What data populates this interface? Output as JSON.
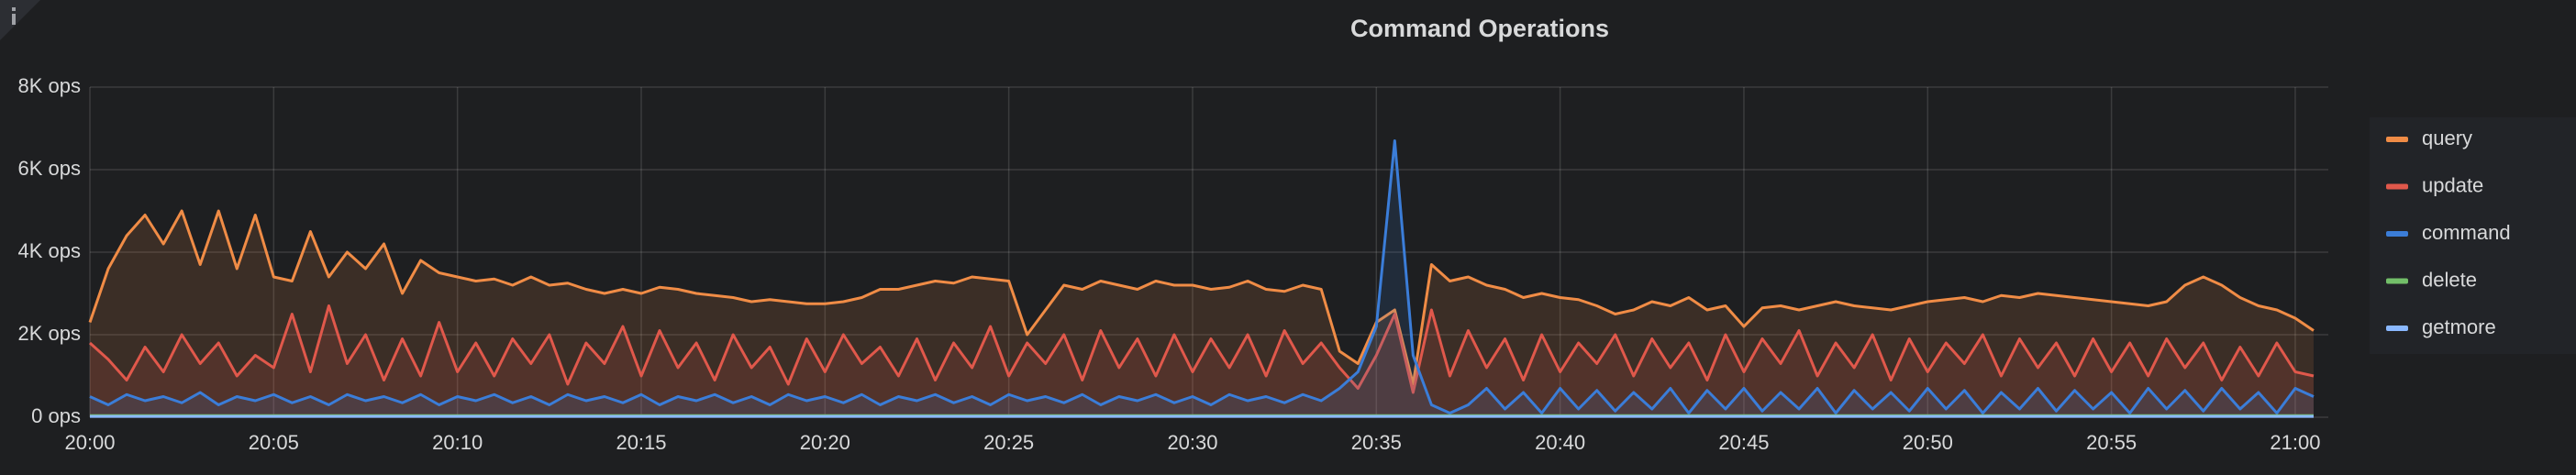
{
  "chart_data": {
    "type": "line",
    "title": "Command Operations",
    "xlim": [
      0,
      60.9
    ],
    "ylim": [
      0,
      8000
    ],
    "xticks": [
      {
        "value": 0,
        "label": "20:00"
      },
      {
        "value": 5,
        "label": "20:05"
      },
      {
        "value": 10,
        "label": "20:10"
      },
      {
        "value": 15,
        "label": "20:15"
      },
      {
        "value": 20,
        "label": "20:20"
      },
      {
        "value": 25,
        "label": "20:25"
      },
      {
        "value": 30,
        "label": "20:30"
      },
      {
        "value": 35,
        "label": "20:35"
      },
      {
        "value": 40,
        "label": "20:40"
      },
      {
        "value": 45,
        "label": "20:45"
      },
      {
        "value": 50,
        "label": "20:50"
      },
      {
        "value": 55,
        "label": "20:55"
      },
      {
        "value": 60,
        "label": "21:00"
      }
    ],
    "yticks": [
      {
        "value": 0,
        "label": "0 ops"
      },
      {
        "value": 2000,
        "label": "2K ops"
      },
      {
        "value": 4000,
        "label": "4K ops"
      },
      {
        "value": 6000,
        "label": "6K ops"
      },
      {
        "value": 8000,
        "label": "8K ops"
      }
    ],
    "grid": true,
    "fill": true,
    "legend": "right",
    "x": [
      0,
      0.5,
      1,
      1.5,
      2,
      2.5,
      3,
      3.5,
      4,
      4.5,
      5,
      5.5,
      6,
      6.5,
      7,
      7.5,
      8,
      8.5,
      9,
      9.5,
      10,
      10.5,
      11,
      11.5,
      12,
      12.5,
      13,
      13.5,
      14,
      14.5,
      15,
      15.5,
      16,
      16.5,
      17,
      17.5,
      18,
      18.5,
      19,
      19.5,
      20,
      20.5,
      21,
      21.5,
      22,
      22.5,
      23,
      23.5,
      24,
      24.5,
      25,
      25.5,
      26,
      26.5,
      27,
      27.5,
      28,
      28.5,
      29,
      29.5,
      30,
      30.5,
      31,
      31.5,
      32,
      32.5,
      33,
      33.5,
      34,
      34.5,
      35,
      35.5,
      36,
      36.5,
      37,
      37.5,
      38,
      38.5,
      39,
      39.5,
      40,
      40.5,
      41,
      41.5,
      42,
      42.5,
      43,
      43.5,
      44,
      44.5,
      45,
      45.5,
      46,
      46.5,
      47,
      47.5,
      48,
      48.5,
      49,
      49.5,
      50,
      50.5,
      51,
      51.5,
      52,
      52.5,
      53,
      53.5,
      54,
      54.5,
      55,
      55.5,
      56,
      56.5,
      57,
      57.5,
      58,
      58.5,
      59,
      59.5,
      60,
      60.5
    ],
    "series": [
      {
        "name": "query",
        "color": "#f08c46",
        "values": [
          2300,
          3600,
          4400,
          4900,
          4200,
          5000,
          3700,
          5000,
          3600,
          4900,
          3400,
          3300,
          4500,
          3400,
          4000,
          3600,
          4200,
          3000,
          3800,
          3500,
          3400,
          3300,
          3350,
          3200,
          3400,
          3200,
          3250,
          3100,
          3000,
          3100,
          3000,
          3150,
          3100,
          3000,
          2950,
          2900,
          2800,
          2850,
          2800,
          2750,
          2750,
          2800,
          2900,
          3100,
          3100,
          3200,
          3300,
          3250,
          3400,
          3350,
          3300,
          2000,
          2600,
          3200,
          3100,
          3300,
          3200,
          3100,
          3300,
          3200,
          3200,
          3100,
          3150,
          3300,
          3100,
          3050,
          3200,
          3100,
          1600,
          1300,
          2300,
          2600,
          800,
          3700,
          3300,
          3400,
          3200,
          3100,
          2900,
          3000,
          2900,
          2850,
          2700,
          2500,
          2600,
          2800,
          2700,
          2900,
          2600,
          2700,
          2200,
          2650,
          2700,
          2600,
          2700,
          2800,
          2700,
          2650,
          2600,
          2700,
          2800,
          2850,
          2900,
          2800,
          2950,
          2900,
          3000,
          2950,
          2900,
          2850,
          2800,
          2750,
          2700,
          2800,
          3200,
          3400,
          3200,
          2900,
          2700,
          2600,
          2400,
          2100
        ]
      },
      {
        "name": "update",
        "color": "#e0584b",
        "values": [
          1800,
          1400,
          900,
          1700,
          1100,
          2000,
          1300,
          1800,
          1000,
          1500,
          1200,
          2500,
          1100,
          2700,
          1300,
          2000,
          900,
          1900,
          1000,
          2300,
          1100,
          1800,
          1000,
          1900,
          1300,
          2000,
          800,
          1800,
          1300,
          2200,
          1000,
          2100,
          1200,
          1800,
          900,
          2000,
          1200,
          1700,
          800,
          1900,
          1100,
          2000,
          1300,
          1700,
          1000,
          1900,
          900,
          1800,
          1200,
          2200,
          1000,
          1800,
          1300,
          2000,
          900,
          2100,
          1200,
          1900,
          1000,
          2000,
          1100,
          1900,
          1200,
          2000,
          1000,
          2100,
          1300,
          1800,
          1200,
          700,
          1500,
          2500,
          600,
          2600,
          1000,
          2100,
          1200,
          1900,
          900,
          2000,
          1100,
          1800,
          1300,
          2000,
          1000,
          1900,
          1200,
          1800,
          900,
          2000,
          1100,
          1900,
          1300,
          2100,
          1000,
          1800,
          1200,
          2000,
          900,
          1900,
          1100,
          1800,
          1300,
          2000,
          1000,
          1900,
          1200,
          1800,
          1000,
          1900,
          1100,
          1800,
          1000,
          1900,
          1200,
          1800,
          900,
          1700,
          1000,
          1800,
          1100,
          1000
        ]
      },
      {
        "name": "command",
        "color": "#3b7dd8",
        "values": [
          500,
          300,
          550,
          400,
          500,
          350,
          600,
          300,
          500,
          400,
          550,
          350,
          500,
          300,
          550,
          400,
          500,
          350,
          550,
          300,
          500,
          400,
          550,
          350,
          500,
          300,
          550,
          400,
          500,
          350,
          550,
          300,
          500,
          400,
          550,
          350,
          500,
          300,
          550,
          400,
          500,
          350,
          550,
          300,
          500,
          400,
          550,
          350,
          500,
          300,
          550,
          400,
          500,
          350,
          550,
          300,
          500,
          400,
          550,
          350,
          500,
          300,
          550,
          400,
          500,
          350,
          550,
          400,
          700,
          1100,
          2200,
          6700,
          1500,
          300,
          100,
          300,
          700,
          200,
          600,
          100,
          700,
          200,
          650,
          150,
          600,
          200,
          700,
          100,
          650,
          200,
          700,
          150,
          600,
          200,
          700,
          100,
          650,
          200,
          600,
          150,
          700,
          200,
          650,
          100,
          600,
          200,
          700,
          150,
          650,
          200,
          600,
          100,
          700,
          200,
          650,
          150,
          700,
          200,
          600,
          100,
          700,
          500
        ]
      },
      {
        "name": "delete",
        "color": "#73bf69",
        "values": [
          40,
          40,
          40,
          40,
          40,
          40,
          40,
          40,
          40,
          40,
          40,
          40,
          40,
          40,
          40,
          40,
          40,
          40,
          40,
          40,
          40,
          40,
          40,
          40,
          40,
          40,
          40,
          40,
          40,
          40,
          40,
          40,
          40,
          40,
          40,
          40,
          40,
          40,
          40,
          40,
          40,
          40,
          40,
          40,
          40,
          40,
          40,
          40,
          40,
          40,
          40,
          40,
          40,
          40,
          40,
          40,
          40,
          40,
          40,
          40,
          40,
          40,
          40,
          40,
          40,
          40,
          40,
          40,
          40,
          40,
          40,
          40,
          40,
          40,
          40,
          40,
          40,
          40,
          40,
          40,
          40,
          40,
          40,
          40,
          40,
          40,
          40,
          40,
          40,
          40,
          40,
          40,
          40,
          40,
          40,
          40,
          40,
          40,
          40,
          40,
          40,
          40,
          40,
          40,
          40,
          40,
          40,
          40,
          40,
          40,
          40,
          40,
          40,
          40,
          40,
          40,
          40,
          40,
          40,
          40,
          40,
          40
        ]
      },
      {
        "name": "getmore",
        "color": "#8ab8ff",
        "values": [
          20,
          20,
          20,
          20,
          20,
          20,
          20,
          20,
          20,
          20,
          20,
          20,
          20,
          20,
          20,
          20,
          20,
          20,
          20,
          20,
          20,
          20,
          20,
          20,
          20,
          20,
          20,
          20,
          20,
          20,
          20,
          20,
          20,
          20,
          20,
          20,
          20,
          20,
          20,
          20,
          20,
          20,
          20,
          20,
          20,
          20,
          20,
          20,
          20,
          20,
          20,
          20,
          20,
          20,
          20,
          20,
          20,
          20,
          20,
          20,
          20,
          20,
          20,
          20,
          20,
          20,
          20,
          20,
          20,
          20,
          20,
          20,
          20,
          20,
          20,
          20,
          20,
          20,
          20,
          20,
          20,
          20,
          20,
          20,
          20,
          20,
          20,
          20,
          20,
          20,
          20,
          20,
          20,
          20,
          20,
          20,
          20,
          20,
          20,
          20,
          20,
          20,
          20,
          20,
          20,
          20,
          20,
          20,
          20,
          20,
          20,
          20,
          20,
          20,
          20,
          20,
          20,
          20,
          20,
          20,
          20,
          20
        ]
      }
    ]
  }
}
